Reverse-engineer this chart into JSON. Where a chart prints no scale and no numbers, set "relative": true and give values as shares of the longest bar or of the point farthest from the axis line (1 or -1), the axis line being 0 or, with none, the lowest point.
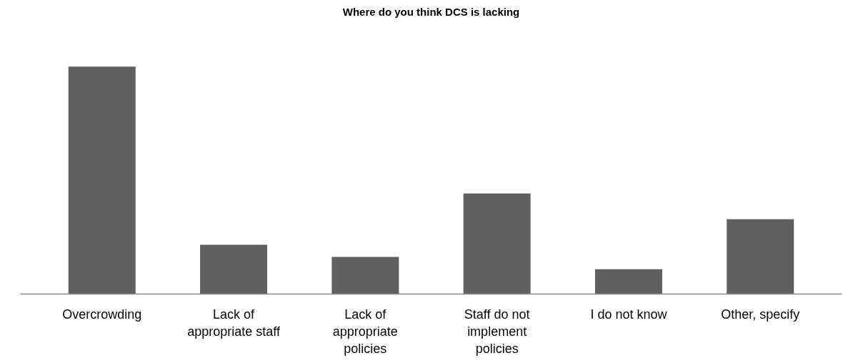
{
  "chart_data": {
    "type": "bar",
    "title": "Where do you think DCS is lacking",
    "relative": true,
    "categories": [
      "Overcrowding",
      "Lack of\nappropriate staff",
      "Lack of\nappropriate\npolicies",
      "Staff do not\nimplement\npolicies",
      "I do not know",
      "Other, specify"
    ],
    "values": [
      1,
      0.217,
      0.163,
      0.442,
      0.109,
      0.329
    ],
    "color": "#606060",
    "grid": false
  }
}
